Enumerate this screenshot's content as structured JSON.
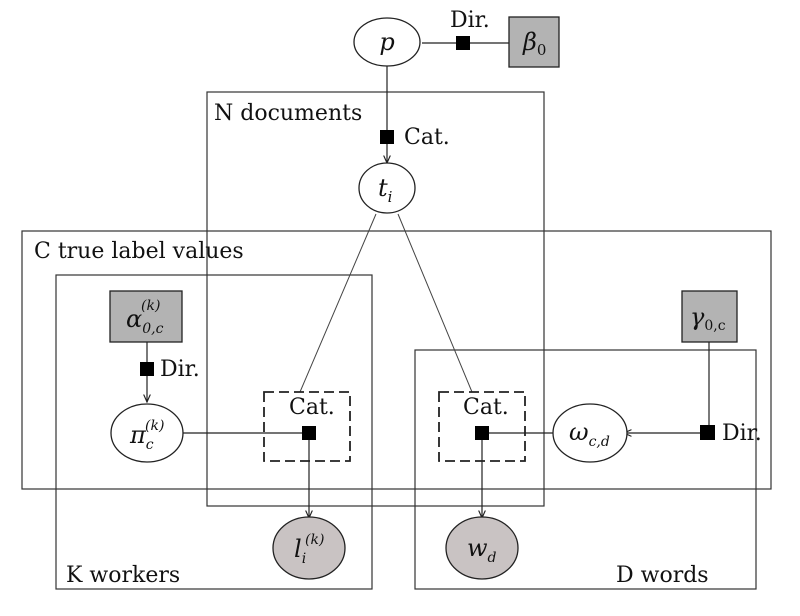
{
  "plates": {
    "documents": "N documents",
    "true_labels": "C true label values",
    "workers": "K workers",
    "words": "D words"
  },
  "nodes": {
    "p": "p",
    "beta": {
      "base": "β",
      "sub": "0"
    },
    "t": {
      "base": "t",
      "sub": "i"
    },
    "alpha": {
      "base": "α",
      "sub": "0,c",
      "sup": "(k)"
    },
    "gamma": {
      "base": "γ",
      "sub": "0,c"
    },
    "pi": {
      "base": "π",
      "sub": "c",
      "sup": "(k)"
    },
    "omega": {
      "base": "ω",
      "sub": "c,d"
    },
    "l": {
      "base": "l",
      "sub": "i",
      "sup": "(k)"
    },
    "w": {
      "base": "w",
      "sub": "d"
    }
  },
  "factors": {
    "beta_to_p": "Dir.",
    "p_to_t": "Cat.",
    "alpha_to_pi": "Dir.",
    "gamma_to_omega": "Dir.",
    "to_l": "Cat.",
    "to_w": "Cat."
  },
  "colors": {
    "observed_fill": "#c9c3c3",
    "hyper_fill": "#b3b3b3",
    "line": "#222222"
  }
}
